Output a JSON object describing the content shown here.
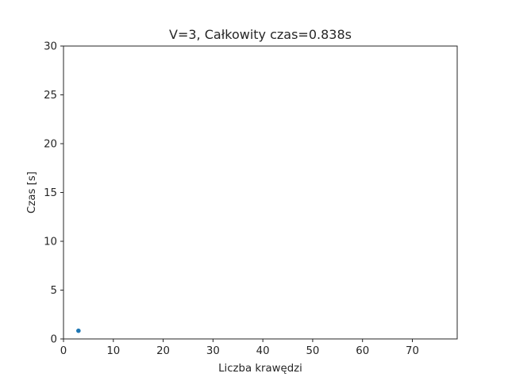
{
  "chart_data": {
    "type": "scatter",
    "title": "V=3, Całkowity czas=0.838s",
    "xlabel": "Liczba krawędzi",
    "ylabel": "Czas [s]",
    "xlim": [
      0,
      79
    ],
    "ylim": [
      0,
      30
    ],
    "xticks": [
      0,
      10,
      20,
      30,
      40,
      50,
      60,
      70
    ],
    "yticks": [
      0,
      5,
      10,
      15,
      20,
      25,
      30
    ],
    "grid": false,
    "series": [
      {
        "color": "#1f77b4",
        "points": [
          {
            "x": 3,
            "y": 0.838
          }
        ]
      }
    ]
  }
}
